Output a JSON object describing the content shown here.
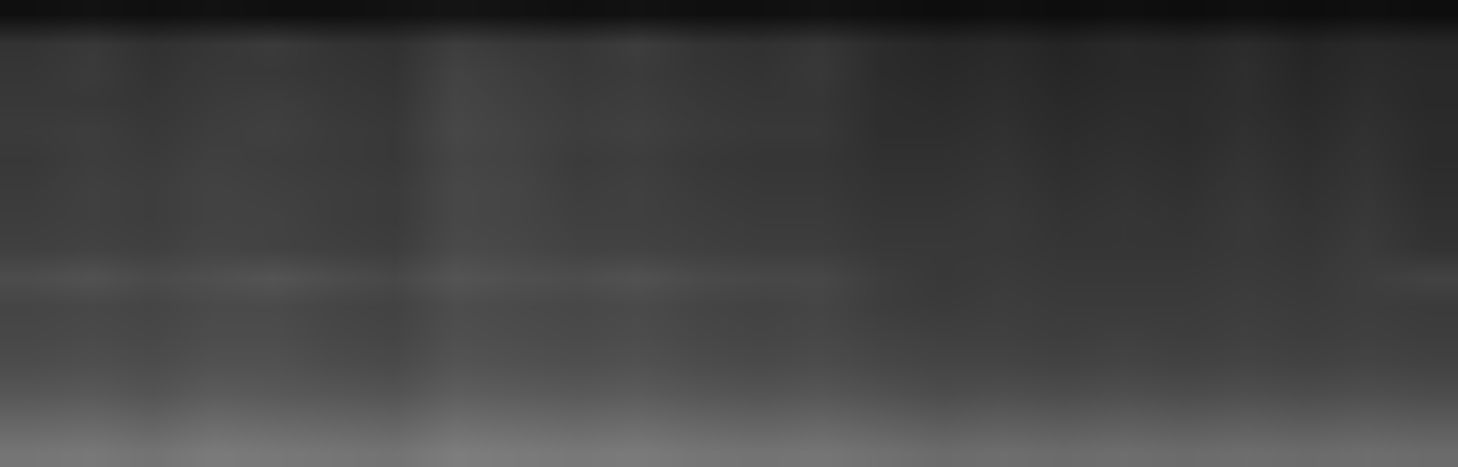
{
  "chart_data": {
    "type": "heatmap",
    "tick_labels": false,
    "zlim": [
      0,
      100
    ],
    "cells": [
      [
        6,
        7,
        6,
        7,
        6,
        6,
        7,
        8,
        7,
        6,
        7,
        6,
        6,
        7,
        6,
        5,
        6,
        5,
        6,
        5,
        6,
        5,
        6,
        5
      ],
      [
        20,
        22,
        19,
        21,
        23,
        20,
        19,
        24,
        22,
        21,
        24,
        20,
        19,
        21,
        17,
        15,
        16,
        14,
        16,
        15,
        17,
        14,
        16,
        15
      ],
      [
        21,
        23,
        20,
        22,
        22,
        21,
        20,
        26,
        24,
        22,
        23,
        21,
        20,
        22,
        17,
        16,
        17,
        15,
        16,
        16,
        18,
        15,
        17,
        16
      ],
      [
        22,
        22,
        21,
        23,
        24,
        22,
        21,
        27,
        25,
        23,
        24,
        22,
        21,
        21,
        18,
        17,
        18,
        16,
        17,
        17,
        18,
        16,
        18,
        16
      ],
      [
        23,
        24,
        22,
        24,
        25,
        23,
        22,
        28,
        26,
        24,
        25,
        23,
        22,
        22,
        18,
        18,
        19,
        17,
        18,
        17,
        19,
        17,
        19,
        17
      ],
      [
        22,
        24,
        23,
        25,
        24,
        23,
        22,
        27,
        26,
        23,
        24,
        22,
        21,
        21,
        19,
        19,
        20,
        18,
        19,
        18,
        20,
        18,
        20,
        17
      ],
      [
        23,
        25,
        24,
        26,
        25,
        24,
        23,
        28,
        27,
        24,
        25,
        23,
        22,
        22,
        20,
        20,
        21,
        19,
        20,
        19,
        21,
        19,
        21,
        18
      ],
      [
        24,
        25,
        24,
        26,
        26,
        24,
        23,
        28,
        27,
        25,
        25,
        24,
        23,
        23,
        21,
        21,
        22,
        20,
        21,
        20,
        22,
        20,
        22,
        19
      ],
      [
        25,
        26,
        25,
        27,
        26,
        25,
        24,
        29,
        28,
        26,
        26,
        25,
        24,
        24,
        22,
        22,
        22,
        21,
        21,
        21,
        22,
        21,
        23,
        20
      ],
      [
        30,
        32,
        29,
        31,
        33,
        30,
        28,
        33,
        31,
        30,
        32,
        29,
        28,
        28,
        24,
        22,
        23,
        22,
        22,
        22,
        23,
        22,
        24,
        26
      ],
      [
        27,
        28,
        27,
        29,
        29,
        27,
        26,
        30,
        29,
        28,
        29,
        27,
        26,
        27,
        24,
        23,
        24,
        23,
        23,
        23,
        24,
        23,
        24,
        23
      ],
      [
        28,
        29,
        28,
        30,
        30,
        28,
        27,
        31,
        30,
        29,
        30,
        28,
        27,
        28,
        26,
        25,
        25,
        24,
        25,
        24,
        25,
        24,
        25,
        24
      ],
      [
        30,
        31,
        30,
        32,
        32,
        30,
        29,
        33,
        32,
        31,
        32,
        30,
        29,
        30,
        28,
        27,
        27,
        26,
        27,
        26,
        27,
        26,
        27,
        26
      ],
      [
        34,
        35,
        33,
        36,
        35,
        34,
        33,
        37,
        36,
        35,
        36,
        34,
        33,
        34,
        32,
        30,
        31,
        30,
        31,
        30,
        31,
        30,
        31,
        30
      ],
      [
        40,
        41,
        39,
        42,
        41,
        40,
        39,
        43,
        42,
        41,
        42,
        40,
        39,
        40,
        38,
        36,
        37,
        36,
        37,
        36,
        37,
        36,
        37,
        36
      ],
      [
        46,
        47,
        45,
        48,
        47,
        46,
        45,
        49,
        48,
        47,
        48,
        46,
        45,
        46,
        44,
        42,
        43,
        42,
        43,
        42,
        43,
        42,
        43,
        42
      ]
    ]
  }
}
